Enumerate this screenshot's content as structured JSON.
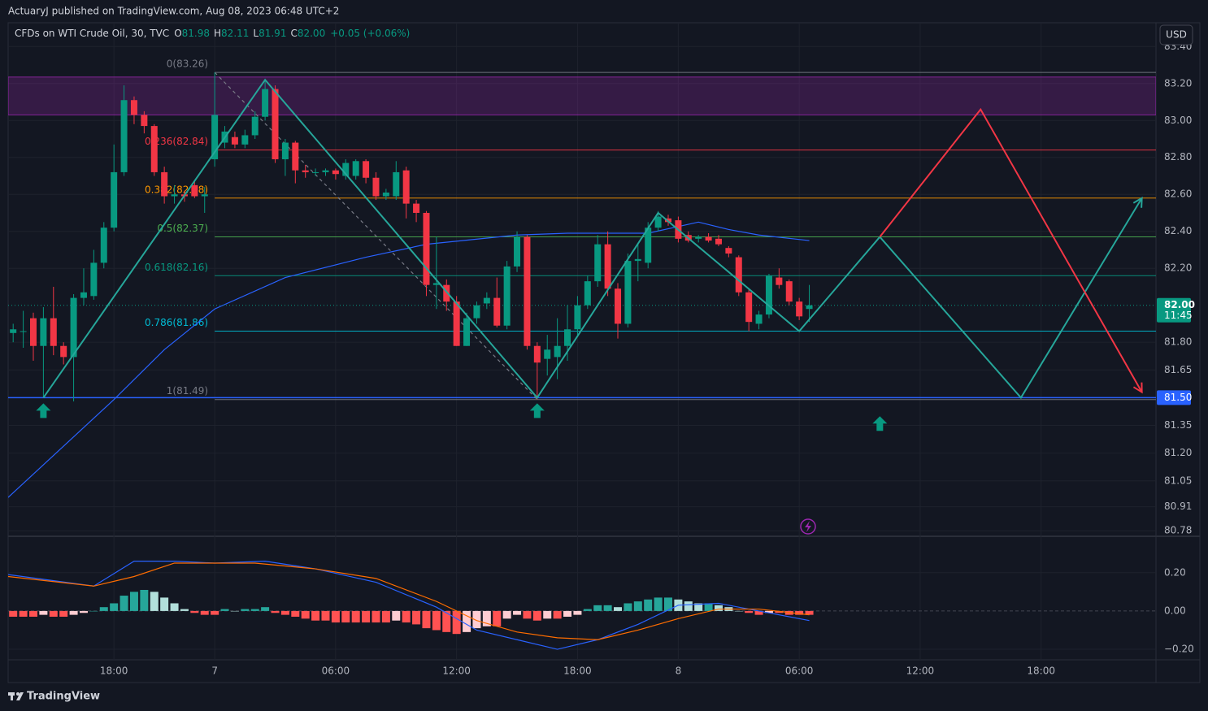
{
  "header": {
    "publisher": "ActuaryJ published on TradingView.com, Aug 08, 2023 06:48 UTC+2",
    "symbol": "CFDs on WTI Crude Oil, 30, TVC",
    "o_label": "O",
    "o": "81.98",
    "h_label": "H",
    "h": "82.11",
    "l_label": "L",
    "l": "81.91",
    "c_label": "C",
    "c": "82.00",
    "change": "+0.05 (+0.06%)",
    "currency": "USD"
  },
  "footer": {
    "brand": "TradingView"
  },
  "chart_data": {
    "type": "candlestick",
    "colors": {
      "up": "#089981",
      "down": "#f23645"
    },
    "candles": [
      {
        "o": 81.85,
        "h": 81.9,
        "l": 81.8,
        "c": 81.87
      },
      {
        "o": 81.86,
        "h": 81.97,
        "l": 81.77,
        "c": 81.86
      },
      {
        "o": 81.93,
        "h": 81.96,
        "l": 81.7,
        "c": 81.78
      },
      {
        "o": 81.78,
        "h": 81.99,
        "l": 81.5,
        "c": 81.93
      },
      {
        "o": 81.93,
        "h": 82.1,
        "l": 81.73,
        "c": 81.78
      },
      {
        "o": 81.78,
        "h": 81.8,
        "l": 81.68,
        "c": 81.72
      },
      {
        "o": 81.72,
        "h": 82.06,
        "l": 81.48,
        "c": 82.04
      },
      {
        "o": 82.04,
        "h": 82.2,
        "l": 82.0,
        "c": 82.07
      },
      {
        "o": 82.05,
        "h": 82.3,
        "l": 82.03,
        "c": 82.23
      },
      {
        "o": 82.23,
        "h": 82.45,
        "l": 82.2,
        "c": 82.42
      },
      {
        "o": 82.42,
        "h": 82.87,
        "l": 82.4,
        "c": 82.72
      },
      {
        "o": 82.72,
        "h": 83.19,
        "l": 82.7,
        "c": 83.11
      },
      {
        "o": 83.11,
        "h": 83.13,
        "l": 82.98,
        "c": 83.03
      },
      {
        "o": 83.03,
        "h": 83.05,
        "l": 82.93,
        "c": 82.97
      },
      {
        "o": 82.97,
        "h": 82.98,
        "l": 82.7,
        "c": 82.72
      },
      {
        "o": 82.72,
        "h": 82.75,
        "l": 82.55,
        "c": 82.59
      },
      {
        "o": 82.59,
        "h": 82.65,
        "l": 82.55,
        "c": 82.6
      },
      {
        "o": 82.6,
        "h": 82.62,
        "l": 82.56,
        "c": 82.59
      },
      {
        "o": 82.65,
        "h": 82.67,
        "l": 82.58,
        "c": 82.59
      },
      {
        "o": 82.59,
        "h": 82.64,
        "l": 82.5,
        "c": 82.6
      },
      {
        "o": 82.79,
        "h": 83.26,
        "l": 82.75,
        "c": 83.03
      },
      {
        "o": 82.88,
        "h": 82.97,
        "l": 82.85,
        "c": 82.94
      },
      {
        "o": 82.91,
        "h": 82.94,
        "l": 82.85,
        "c": 82.87
      },
      {
        "o": 82.87,
        "h": 82.95,
        "l": 82.85,
        "c": 82.92
      },
      {
        "o": 82.92,
        "h": 83.05,
        "l": 82.9,
        "c": 83.02
      },
      {
        "o": 83.02,
        "h": 83.22,
        "l": 83.0,
        "c": 83.17
      },
      {
        "o": 83.17,
        "h": 83.19,
        "l": 82.77,
        "c": 82.79
      },
      {
        "o": 82.79,
        "h": 82.9,
        "l": 82.7,
        "c": 82.88
      },
      {
        "o": 82.88,
        "h": 82.89,
        "l": 82.66,
        "c": 82.73
      },
      {
        "o": 82.73,
        "h": 82.76,
        "l": 82.69,
        "c": 82.72
      },
      {
        "o": 82.72,
        "h": 82.74,
        "l": 82.7,
        "c": 82.72
      },
      {
        "o": 82.72,
        "h": 82.74,
        "l": 82.7,
        "c": 82.73
      },
      {
        "o": 82.73,
        "h": 82.74,
        "l": 82.68,
        "c": 82.71
      },
      {
        "o": 82.7,
        "h": 82.79,
        "l": 82.68,
        "c": 82.77
      },
      {
        "o": 82.7,
        "h": 82.79,
        "l": 82.68,
        "c": 82.78
      },
      {
        "o": 82.78,
        "h": 82.79,
        "l": 82.66,
        "c": 82.69
      },
      {
        "o": 82.69,
        "h": 82.72,
        "l": 82.57,
        "c": 82.59
      },
      {
        "o": 82.59,
        "h": 82.63,
        "l": 82.57,
        "c": 82.61
      },
      {
        "o": 82.59,
        "h": 82.78,
        "l": 82.57,
        "c": 82.72
      },
      {
        "o": 82.73,
        "h": 82.75,
        "l": 82.47,
        "c": 82.55
      },
      {
        "o": 82.55,
        "h": 82.57,
        "l": 82.45,
        "c": 82.5
      },
      {
        "o": 82.5,
        "h": 82.51,
        "l": 82.05,
        "c": 82.11
      },
      {
        "o": 82.11,
        "h": 82.37,
        "l": 81.98,
        "c": 82.12
      },
      {
        "o": 82.11,
        "h": 82.14,
        "l": 81.97,
        "c": 82.02
      },
      {
        "o": 82.02,
        "h": 82.05,
        "l": 81.78,
        "c": 81.78
      },
      {
        "o": 81.78,
        "h": 81.96,
        "l": 81.78,
        "c": 81.93
      },
      {
        "o": 81.93,
        "h": 82.02,
        "l": 81.9,
        "c": 82.0
      },
      {
        "o": 82.01,
        "h": 82.07,
        "l": 81.98,
        "c": 82.04
      },
      {
        "o": 82.04,
        "h": 82.15,
        "l": 81.88,
        "c": 81.89
      },
      {
        "o": 81.89,
        "h": 82.24,
        "l": 81.87,
        "c": 82.21
      },
      {
        "o": 82.21,
        "h": 82.4,
        "l": 82.18,
        "c": 82.37
      },
      {
        "o": 82.37,
        "h": 82.38,
        "l": 81.76,
        "c": 81.78
      },
      {
        "o": 81.78,
        "h": 81.8,
        "l": 81.49,
        "c": 81.69
      },
      {
        "o": 81.71,
        "h": 81.84,
        "l": 81.62,
        "c": 81.76
      },
      {
        "o": 81.72,
        "h": 81.93,
        "l": 81.6,
        "c": 81.78
      },
      {
        "o": 81.78,
        "h": 82.0,
        "l": 81.7,
        "c": 81.87
      },
      {
        "o": 81.87,
        "h": 82.05,
        "l": 81.84,
        "c": 82.0
      },
      {
        "o": 82.0,
        "h": 82.16,
        "l": 81.98,
        "c": 82.13
      },
      {
        "o": 82.13,
        "h": 82.38,
        "l": 82.1,
        "c": 82.33
      },
      {
        "o": 82.33,
        "h": 82.4,
        "l": 82.05,
        "c": 82.09
      },
      {
        "o": 82.09,
        "h": 82.12,
        "l": 81.82,
        "c": 81.9
      },
      {
        "o": 81.9,
        "h": 82.28,
        "l": 81.88,
        "c": 82.24
      },
      {
        "o": 82.24,
        "h": 82.33,
        "l": 82.13,
        "c": 82.25
      },
      {
        "o": 82.23,
        "h": 82.45,
        "l": 82.2,
        "c": 82.42
      },
      {
        "o": 82.42,
        "h": 82.51,
        "l": 82.4,
        "c": 82.48
      },
      {
        "o": 82.47,
        "h": 82.49,
        "l": 82.43,
        "c": 82.45
      },
      {
        "o": 82.46,
        "h": 82.48,
        "l": 82.34,
        "c": 82.36
      },
      {
        "o": 82.38,
        "h": 82.4,
        "l": 82.34,
        "c": 82.35
      },
      {
        "o": 82.36,
        "h": 82.38,
        "l": 82.34,
        "c": 82.37
      },
      {
        "o": 82.37,
        "h": 82.39,
        "l": 82.34,
        "c": 82.35
      },
      {
        "o": 82.36,
        "h": 82.38,
        "l": 82.32,
        "c": 82.33
      },
      {
        "o": 82.31,
        "h": 82.32,
        "l": 82.26,
        "c": 82.28
      },
      {
        "o": 82.26,
        "h": 82.27,
        "l": 82.05,
        "c": 82.07
      },
      {
        "o": 82.07,
        "h": 82.09,
        "l": 81.86,
        "c": 81.91
      },
      {
        "o": 81.9,
        "h": 81.97,
        "l": 81.87,
        "c": 81.95
      },
      {
        "o": 81.95,
        "h": 82.17,
        "l": 81.93,
        "c": 82.16
      },
      {
        "o": 82.15,
        "h": 82.2,
        "l": 82.09,
        "c": 82.11
      },
      {
        "o": 82.13,
        "h": 82.14,
        "l": 82.0,
        "c": 82.02
      },
      {
        "o": 82.02,
        "h": 82.04,
        "l": 81.92,
        "c": 81.94
      },
      {
        "o": 81.98,
        "h": 82.11,
        "l": 81.91,
        "c": 82.0
      }
    ],
    "xlim": [
      -0.5,
      113.4
    ],
    "xticks": [
      {
        "value": 10,
        "label": "18:00"
      },
      {
        "value": 20,
        "label": "7"
      },
      {
        "value": 32,
        "label": "06:00"
      },
      {
        "value": 44,
        "label": "12:00"
      },
      {
        "value": 56,
        "label": "18:00"
      },
      {
        "value": 66,
        "label": "8"
      },
      {
        "value": 78,
        "label": "06:00"
      },
      {
        "value": 90,
        "label": "12:00"
      },
      {
        "value": 102,
        "label": "18:00"
      }
    ],
    "ylim": [
      80.75,
      83.41
    ],
    "yticks": [
      {
        "value": 83.4,
        "label": "83.40"
      },
      {
        "value": 83.2,
        "label": "83.20"
      },
      {
        "value": 83.0,
        "label": "83.00"
      },
      {
        "value": 82.8,
        "label": "82.80"
      },
      {
        "value": 82.6,
        "label": "82.60"
      },
      {
        "value": 82.4,
        "label": "82.40"
      },
      {
        "value": 82.2,
        "label": "82.20"
      },
      {
        "value": 81.8,
        "label": "81.80"
      },
      81.65,
      {
        "value": 81.35,
        "label": "81.35"
      },
      {
        "value": 81.2,
        "label": "81.20"
      },
      81.05,
      80.91,
      80.78
    ],
    "grid": true,
    "moving_average": {
      "color": "#2962ff",
      "x": [
        -0.5,
        10,
        15,
        20,
        27,
        35,
        41,
        50,
        55,
        63,
        68,
        71,
        74,
        79
      ],
      "values": [
        80.96,
        81.49,
        81.76,
        81.98,
        82.15,
        82.26,
        82.33,
        82.38,
        82.39,
        82.39,
        82.45,
        82.41,
        82.38,
        82.35
      ]
    },
    "last_price": {
      "value": 82.0,
      "label": "82.00",
      "countdown": "11:45",
      "color": "#089981"
    },
    "horizontal_line": {
      "value": 81.5,
      "label": "81.50",
      "color": "#2962ff"
    },
    "zone": {
      "top": 83.235,
      "bottom": 83.03,
      "color": "#9c27b0"
    },
    "fib": {
      "start_x": 20,
      "levels": [
        {
          "value": 83.26,
          "label": "0(83.26)",
          "color": "#787b86"
        },
        {
          "value": 82.84,
          "label": "0.236(82.84)",
          "color": "#f23645"
        },
        {
          "value": 82.58,
          "label": "0.382(82.58)",
          "color": "#ff9800"
        },
        {
          "value": 82.37,
          "label": "0.5(82.37)",
          "color": "#4caf50"
        },
        {
          "value": 82.16,
          "label": "0.618(82.16)",
          "color": "#089981"
        },
        {
          "value": 81.86,
          "label": "0.786(81.86)",
          "color": "#00bcd4"
        },
        {
          "value": 81.49,
          "label": "1(81.49)",
          "color": "#787b86"
        }
      ]
    },
    "trend_line": {
      "color": "#787b86",
      "x": [
        20,
        52
      ],
      "values": [
        83.26,
        81.49
      ]
    },
    "zigzags": [
      {
        "color": "#26a69a",
        "x": [
          3,
          25,
          52,
          64,
          78,
          86,
          100,
          112
        ],
        "values": [
          81.5,
          83.22,
          81.5,
          82.5,
          81.86,
          82.37,
          81.5,
          82.58
        ]
      },
      {
        "color": "#f23645",
        "x": [
          86,
          96,
          112
        ],
        "values": [
          82.37,
          83.06,
          81.53
        ]
      }
    ],
    "signal_arrows": {
      "color": "#089981",
      "x": [
        3,
        52,
        86
      ],
      "values": [
        81.43,
        81.43,
        81.36
      ]
    },
    "macd": {
      "ylim": [
        -0.255,
        0.39
      ],
      "yticks": [
        {
          "value": 0.2,
          "label": "0.20"
        },
        {
          "value": 0,
          "label": "0.00"
        },
        {
          "value": -0.2,
          "label": "−0.20"
        }
      ],
      "hist_colors": {
        "up_strong": "#26a69a",
        "up_weak": "#b2dfdb",
        "down_strong": "#ff5252",
        "down_weak": "#ffcdd2"
      },
      "histogram": [
        -0.03,
        -0.03,
        -0.03,
        -0.02,
        -0.03,
        -0.03,
        -0.02,
        -0.01,
        0.0,
        0.02,
        0.04,
        0.08,
        0.1,
        0.11,
        0.1,
        0.07,
        0.04,
        0.01,
        -0.01,
        -0.02,
        -0.02,
        0.01,
        0.0,
        0.01,
        0.01,
        0.02,
        -0.01,
        -0.02,
        -0.03,
        -0.04,
        -0.05,
        -0.05,
        -0.06,
        -0.06,
        -0.06,
        -0.06,
        -0.06,
        -0.06,
        -0.05,
        -0.06,
        -0.07,
        -0.09,
        -0.1,
        -0.11,
        -0.12,
        -0.11,
        -0.09,
        -0.08,
        -0.08,
        -0.04,
        -0.02,
        -0.04,
        -0.05,
        -0.04,
        -0.04,
        -0.03,
        -0.02,
        0.01,
        0.03,
        0.03,
        0.02,
        0.04,
        0.05,
        0.06,
        0.07,
        0.07,
        0.06,
        0.05,
        0.04,
        0.04,
        0.03,
        0.02,
        0.0,
        -0.01,
        -0.02,
        -0.01,
        -0.01,
        -0.02,
        -0.02,
        -0.02
      ],
      "macd_line": {
        "color": "#2962ff",
        "x": [
          -0.5,
          8,
          12,
          16,
          20,
          25,
          30,
          36,
          42,
          46,
          50,
          54,
          58,
          62,
          66,
          70,
          74,
          79
        ],
        "values": [
          0.19,
          0.13,
          0.26,
          0.26,
          0.25,
          0.26,
          0.22,
          0.15,
          0.02,
          -0.1,
          -0.15,
          -0.2,
          -0.15,
          -0.07,
          0.03,
          0.04,
          0.0,
          -0.05
        ]
      },
      "signal_line": {
        "color": "#ff6d00",
        "x": [
          -0.5,
          8,
          12,
          16,
          24,
          30,
          36,
          42,
          46,
          50,
          54,
          58,
          62,
          66,
          70,
          74,
          79
        ],
        "values": [
          0.18,
          0.13,
          0.18,
          0.25,
          0.25,
          0.22,
          0.17,
          0.05,
          -0.05,
          -0.11,
          -0.14,
          -0.15,
          -0.1,
          -0.04,
          0.01,
          0.01,
          -0.02
        ]
      }
    }
  }
}
